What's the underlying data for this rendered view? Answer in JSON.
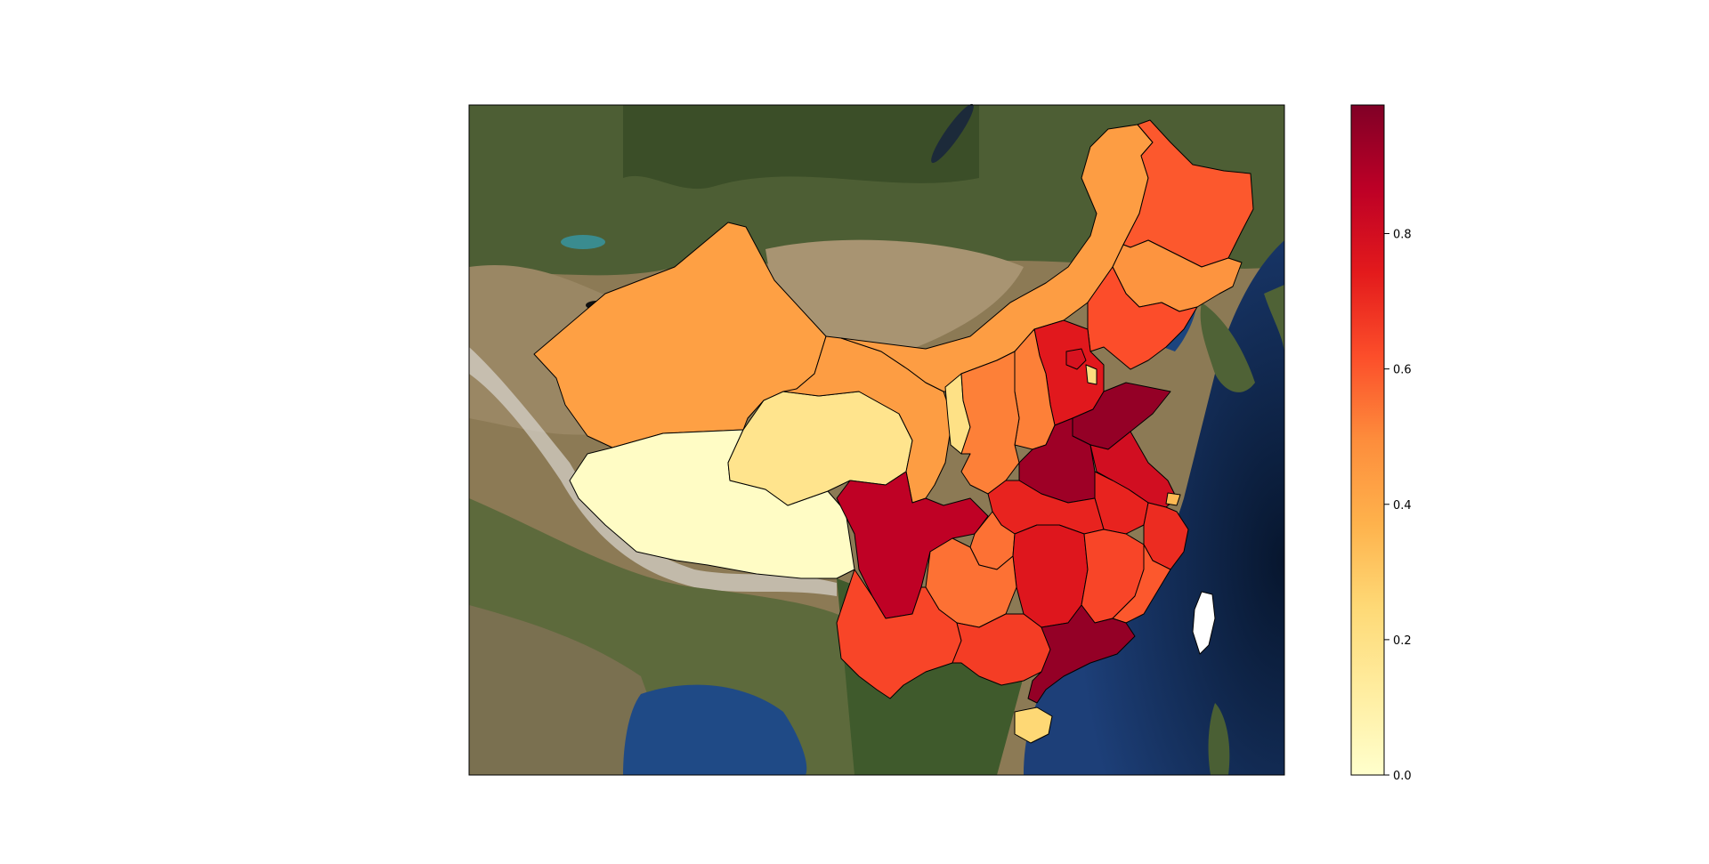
{
  "chart_data": {
    "type": "choropleth",
    "title": "",
    "map_extent": "China with surrounding region on satellite basemap",
    "colormap": "YlOrRd",
    "colorbar": {
      "orientation": "vertical",
      "placement": "right",
      "vmin": 0.0,
      "vmax": 0.99,
      "ticks": [
        0.0,
        0.2,
        0.4,
        0.6,
        0.8
      ],
      "tick_labels": [
        "0.0",
        "0.2",
        "0.4",
        "0.6",
        "0.8"
      ]
    },
    "colormap_stops": [
      "#ffffcc",
      "#ffeda0",
      "#fed976",
      "#feb24c",
      "#fd8d3c",
      "#fc4e2a",
      "#e31a1c",
      "#bd0026",
      "#800026"
    ],
    "regions": [
      {
        "name": "Tibet",
        "value": 0.02
      },
      {
        "name": "Qinghai",
        "value": 0.18
      },
      {
        "name": "Xinjiang",
        "value": 0.43
      },
      {
        "name": "Gansu",
        "value": 0.44
      },
      {
        "name": "Inner Mongolia",
        "value": 0.44
      },
      {
        "name": "Ningxia",
        "value": 0.2
      },
      {
        "name": "Shaanxi",
        "value": 0.52
      },
      {
        "name": "Shanxi",
        "value": 0.52
      },
      {
        "name": "Heilongjiang",
        "value": 0.6
      },
      {
        "name": "Jilin",
        "value": 0.47
      },
      {
        "name": "Liaoning",
        "value": 0.62
      },
      {
        "name": "Beijing",
        "value": 0.78
      },
      {
        "name": "Tianjin",
        "value": 0.22
      },
      {
        "name": "Hebei",
        "value": 0.75
      },
      {
        "name": "Shandong",
        "value": 0.95
      },
      {
        "name": "Henan",
        "value": 0.93
      },
      {
        "name": "Jiangsu",
        "value": 0.8
      },
      {
        "name": "Shanghai",
        "value": 0.35
      },
      {
        "name": "Anhui",
        "value": 0.72
      },
      {
        "name": "Hubei",
        "value": 0.72
      },
      {
        "name": "Sichuan",
        "value": 0.86
      },
      {
        "name": "Chongqing",
        "value": 0.55
      },
      {
        "name": "Zhejiang",
        "value": 0.7
      },
      {
        "name": "Hunan",
        "value": 0.76
      },
      {
        "name": "Jiangxi",
        "value": 0.64
      },
      {
        "name": "Fujian",
        "value": 0.6
      },
      {
        "name": "Guizhou",
        "value": 0.55
      },
      {
        "name": "Yunnan",
        "value": 0.64
      },
      {
        "name": "Guangxi",
        "value": 0.66
      },
      {
        "name": "Guangdong",
        "value": 0.95
      },
      {
        "name": "Hainan",
        "value": 0.25
      },
      {
        "name": "Taiwan",
        "value": null
      }
    ]
  }
}
